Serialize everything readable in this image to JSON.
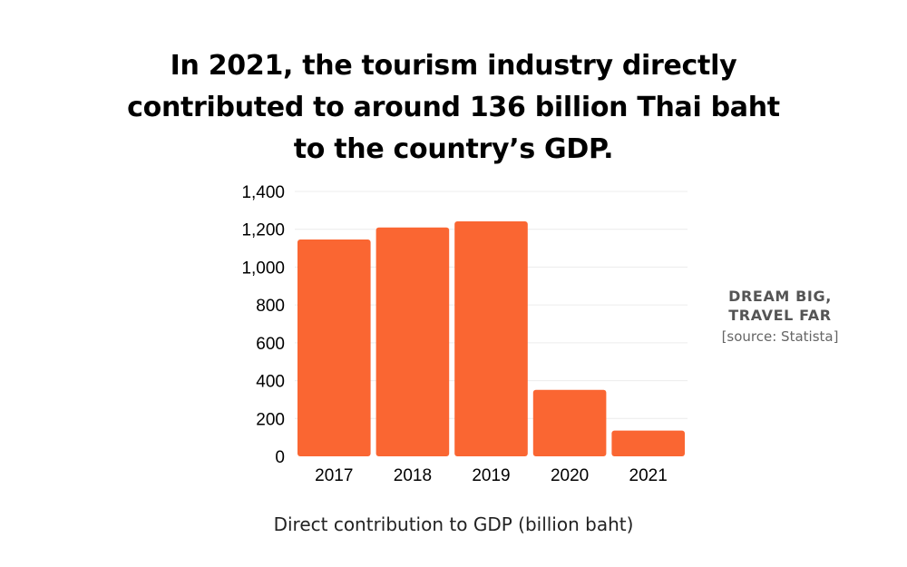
{
  "title_lines": [
    "In 2021, the tourism industry directly",
    "contributed to around 136 billion Thai baht",
    "to the country’s GDP."
  ],
  "side_note": {
    "tagline_lines": [
      "DREAM BIG,",
      "TRAVEL FAR"
    ],
    "source": "[source: Statista]"
  },
  "colors": {
    "bar": "#fa6632",
    "grid": "#ececec",
    "tick_text": "#000000"
  },
  "chart_data": {
    "type": "bar",
    "categories": [
      "2017",
      "2018",
      "2019",
      "2020",
      "2021"
    ],
    "values": [
      1146,
      1209,
      1242,
      351,
      136
    ],
    "title": "",
    "xlabel": "Direct contribution to GDP (billion baht)",
    "ylabel": "",
    "ylim": [
      0,
      1400
    ],
    "yticks": [
      0,
      200,
      400,
      600,
      800,
      1000,
      1200,
      1400
    ],
    "ytick_labels": [
      "0",
      "200",
      "400",
      "600",
      "800",
      "1,000",
      "1,200",
      "1,400"
    ],
    "grid": true,
    "legend": "none"
  }
}
